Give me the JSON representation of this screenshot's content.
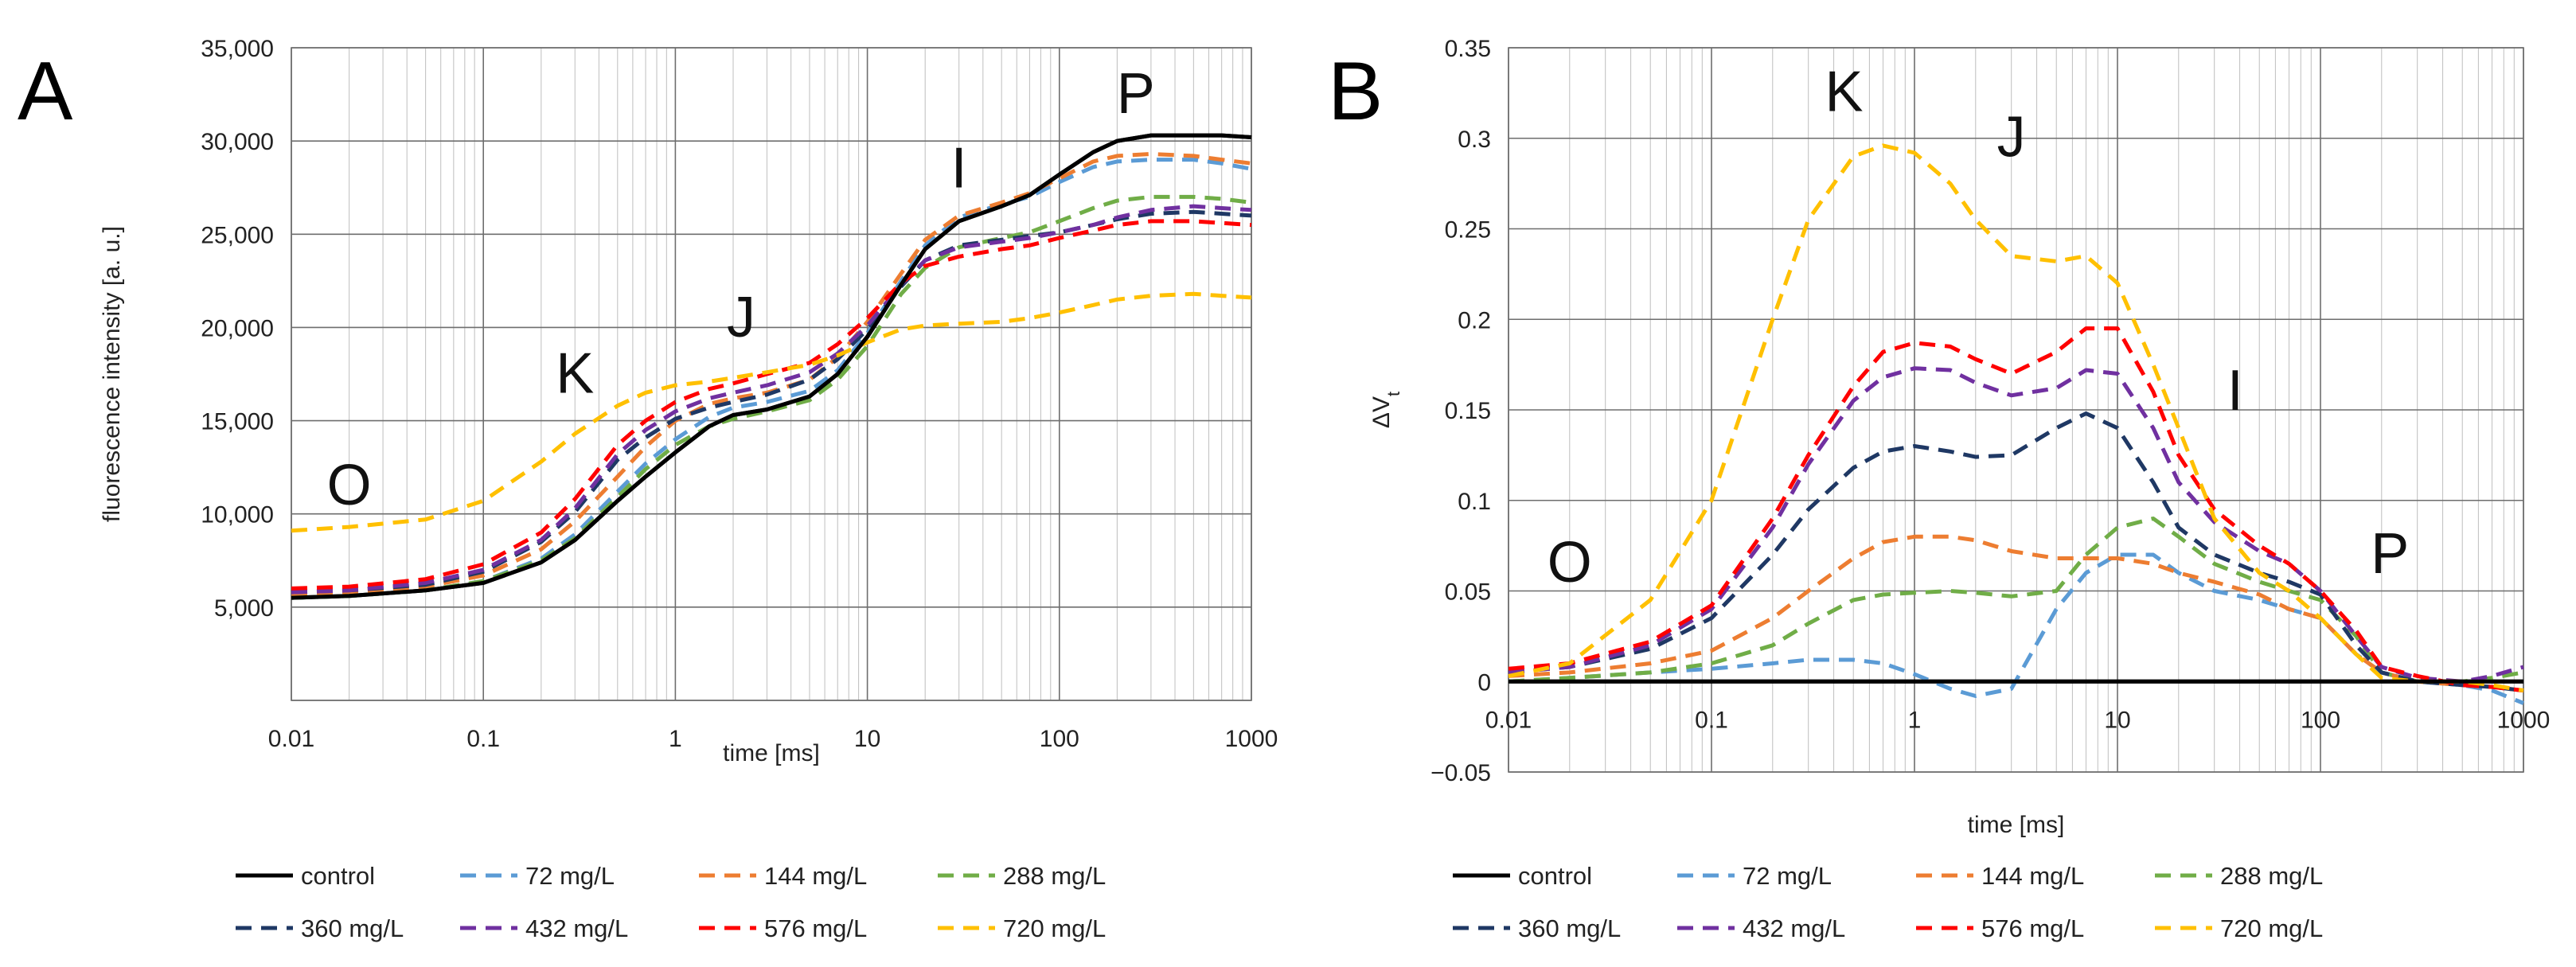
{
  "chart_data": [
    {
      "type": "line",
      "panel_label": "A",
      "title": "",
      "xlabel": "time [ms]",
      "ylabel": "fluorescence intensity [a. u.]",
      "x_scale": "log",
      "xlim": [
        0.01,
        1000
      ],
      "ylim": [
        0,
        35000
      ],
      "grid": true,
      "x_tick_labels": [
        "0.01",
        "0.1",
        "1",
        "10",
        "100",
        "1000"
      ],
      "y_tick_labels": [
        "",
        "5,000",
        "10,000",
        "15,000",
        "20,000",
        "25,000",
        "30,000",
        "35,000"
      ],
      "y_ticks": [
        0,
        5000,
        10000,
        15000,
        20000,
        25000,
        30000,
        35000
      ],
      "annotations": [
        {
          "text": "O",
          "x": 0.02,
          "y": 10500
        },
        {
          "text": "K",
          "x": 0.3,
          "y": 16500
        },
        {
          "text": "J",
          "x": 2.2,
          "y": 19500
        },
        {
          "text": "I",
          "x": 30,
          "y": 27500
        },
        {
          "text": "P",
          "x": 250,
          "y": 31500
        }
      ],
      "x": [
        0.01,
        0.02,
        0.05,
        0.1,
        0.2,
        0.3,
        0.5,
        0.7,
        1,
        1.5,
        2,
        3,
        5,
        7,
        10,
        15,
        20,
        30,
        50,
        70,
        100,
        150,
        200,
        300,
        500,
        700,
        1000
      ],
      "series": [
        {
          "name": "control",
          "color": "#000000",
          "dash": "solid",
          "values": [
            5500,
            5600,
            5900,
            6300,
            7400,
            8600,
            10700,
            12000,
            13300,
            14700,
            15300,
            15600,
            16300,
            17500,
            19500,
            22300,
            24200,
            25700,
            26500,
            27100,
            28200,
            29400,
            30000,
            30300,
            30300,
            30300,
            30200
          ]
        },
        {
          "name": "72 mg/L",
          "color": "#5b9bd5",
          "dash": "dashed",
          "values": [
            5500,
            5600,
            5900,
            6400,
            7600,
            8900,
            11200,
            12700,
            14000,
            15200,
            15700,
            16000,
            16600,
            17700,
            19700,
            22500,
            24400,
            25900,
            26600,
            27000,
            27800,
            28600,
            28900,
            29000,
            29000,
            28800,
            28500
          ]
        },
        {
          "name": "144 mg/L",
          "color": "#ed7d31",
          "dash": "dashed",
          "values": [
            5700,
            5800,
            6100,
            6700,
            8100,
            9600,
            12000,
            13600,
            15000,
            15900,
            16200,
            16500,
            17200,
            18400,
            20300,
            22900,
            24700,
            26000,
            26700,
            27200,
            28000,
            28900,
            29200,
            29300,
            29200,
            29000,
            28800
          ]
        },
        {
          "name": "288 mg/L",
          "color": "#70ad47",
          "dash": "dashed",
          "values": [
            5500,
            5600,
            5900,
            6400,
            7500,
            8700,
            10900,
            12400,
            13700,
            14700,
            15100,
            15500,
            16100,
            17200,
            19000,
            21800,
            23200,
            24300,
            24800,
            25100,
            25700,
            26400,
            26800,
            27000,
            27000,
            26900,
            26700
          ]
        },
        {
          "name": "360 mg/L",
          "color": "#1f3864",
          "dash": "dashed",
          "values": [
            5800,
            5900,
            6200,
            6900,
            8500,
            10100,
            12900,
            14100,
            15100,
            15700,
            16000,
            16400,
            17200,
            18300,
            19900,
            22200,
            23600,
            24400,
            24700,
            24900,
            25100,
            25500,
            25800,
            26100,
            26200,
            26100,
            26000
          ]
        },
        {
          "name": "432 mg/L",
          "color": "#7030a0",
          "dash": "dashed",
          "values": [
            5800,
            5900,
            6300,
            7000,
            8600,
            10300,
            13200,
            14500,
            15500,
            16200,
            16500,
            16900,
            17600,
            18600,
            20100,
            22300,
            23600,
            24300,
            24600,
            24800,
            25100,
            25500,
            25900,
            26300,
            26500,
            26400,
            26300
          ]
        },
        {
          "name": "576 mg/L",
          "color": "#ff0000",
          "dash": "dashed",
          "values": [
            6000,
            6100,
            6500,
            7300,
            9000,
            10800,
            13700,
            15000,
            16000,
            16700,
            17000,
            17500,
            18100,
            19100,
            20500,
            22400,
            23300,
            23800,
            24200,
            24400,
            24800,
            25200,
            25500,
            25700,
            25700,
            25600,
            25500
          ]
        },
        {
          "name": "720 mg/L",
          "color": "#ffc000",
          "dash": "dashed",
          "values": [
            9100,
            9300,
            9700,
            10700,
            12800,
            14300,
            15800,
            16500,
            16900,
            17100,
            17300,
            17600,
            18000,
            18500,
            19200,
            19900,
            20100,
            20200,
            20300,
            20500,
            20800,
            21200,
            21500,
            21700,
            21800,
            21700,
            21600
          ]
        }
      ]
    },
    {
      "type": "line",
      "panel_label": "B",
      "title": "",
      "xlabel": "time [ms]",
      "ylabel": "ΔV",
      "ylabel_sub": "t",
      "x_scale": "log",
      "xlim": [
        0.01,
        1000
      ],
      "ylim": [
        -0.05,
        0.35
      ],
      "grid": true,
      "x_tick_labels": [
        "0.01",
        "0.1",
        "1",
        "10",
        "100",
        "1000"
      ],
      "y_tick_labels": [
        "−0.05",
        "0",
        "0.05",
        "0.1",
        "0.15",
        "0.2",
        "0.25",
        "0.3",
        "0.35"
      ],
      "y_ticks": [
        -0.05,
        0,
        0.05,
        0.1,
        0.15,
        0.2,
        0.25,
        0.3,
        0.35
      ],
      "annotations": [
        {
          "text": "K",
          "x": 0.45,
          "y": 0.315
        },
        {
          "text": "J",
          "x": 3,
          "y": 0.29
        },
        {
          "text": "I",
          "x": 38,
          "y": 0.15
        },
        {
          "text": "O",
          "x": 0.02,
          "y": 0.055
        },
        {
          "text": "P",
          "x": 220,
          "y": 0.06
        }
      ],
      "x": [
        0.01,
        0.02,
        0.05,
        0.1,
        0.2,
        0.3,
        0.5,
        0.7,
        1,
        1.5,
        2,
        3,
        5,
        7,
        10,
        15,
        20,
        30,
        50,
        70,
        100,
        150,
        200,
        300,
        500,
        700,
        1000
      ],
      "series": [
        {
          "name": "control",
          "color": "#000000",
          "dash": "solid",
          "values": [
            0,
            0,
            0,
            0,
            0,
            0,
            0,
            0,
            0,
            0,
            0,
            0,
            0,
            0,
            0,
            0,
            0,
            0,
            0,
            0,
            0,
            0,
            0,
            0,
            0,
            0,
            0
          ]
        },
        {
          "name": "72 mg/L",
          "color": "#5b9bd5",
          "dash": "dashed",
          "values": [
            0,
            0.002,
            0.005,
            0.007,
            0.01,
            0.012,
            0.012,
            0.01,
            0.004,
            -0.004,
            -0.008,
            -0.004,
            0.04,
            0.06,
            0.07,
            0.07,
            0.06,
            0.05,
            0.045,
            0.04,
            0.035,
            0.015,
            0.005,
            0,
            -0.002,
            -0.005,
            -0.012
          ]
        },
        {
          "name": "144 mg/L",
          "color": "#ed7d31",
          "dash": "dashed",
          "values": [
            0.003,
            0.005,
            0.01,
            0.017,
            0.035,
            0.05,
            0.068,
            0.077,
            0.08,
            0.08,
            0.078,
            0.072,
            0.068,
            0.068,
            0.068,
            0.065,
            0.06,
            0.055,
            0.048,
            0.04,
            0.035,
            0.015,
            0.005,
            0,
            -0.002,
            -0.003,
            -0.005
          ]
        },
        {
          "name": "288 mg/L",
          "color": "#70ad47",
          "dash": "dashed",
          "values": [
            0,
            0.002,
            0.005,
            0.01,
            0.02,
            0.032,
            0.045,
            0.048,
            0.049,
            0.05,
            0.049,
            0.047,
            0.05,
            0.07,
            0.085,
            0.09,
            0.08,
            0.065,
            0.055,
            0.05,
            0.045,
            0.025,
            0.005,
            0,
            0,
            0.002,
            0.005
          ]
        },
        {
          "name": "360 mg/L",
          "color": "#1f3864",
          "dash": "dashed",
          "values": [
            0.005,
            0.008,
            0.018,
            0.035,
            0.07,
            0.095,
            0.118,
            0.127,
            0.13,
            0.127,
            0.124,
            0.125,
            0.14,
            0.148,
            0.14,
            0.11,
            0.085,
            0.07,
            0.06,
            0.055,
            0.048,
            0.02,
            0.005,
            0,
            -0.002,
            -0.003,
            -0.005
          ]
        },
        {
          "name": "432 mg/L",
          "color": "#7030a0",
          "dash": "dashed",
          "values": [
            0.005,
            0.008,
            0.02,
            0.04,
            0.085,
            0.12,
            0.155,
            0.168,
            0.173,
            0.172,
            0.165,
            0.158,
            0.162,
            0.172,
            0.17,
            0.14,
            0.11,
            0.088,
            0.072,
            0.065,
            0.05,
            0.025,
            0.008,
            0.002,
            0,
            0.003,
            0.008
          ]
        },
        {
          "name": "576 mg/L",
          "color": "#ff0000",
          "dash": "dashed",
          "values": [
            0.007,
            0.01,
            0.022,
            0.042,
            0.09,
            0.125,
            0.163,
            0.182,
            0.187,
            0.185,
            0.178,
            0.17,
            0.182,
            0.195,
            0.195,
            0.16,
            0.125,
            0.095,
            0.075,
            0.065,
            0.05,
            0.028,
            0.008,
            0.003,
            -0.002,
            -0.003,
            -0.005
          ]
        },
        {
          "name": "720 mg/L",
          "color": "#ffc000",
          "dash": "dashed",
          "values": [
            0.003,
            0.01,
            0.045,
            0.1,
            0.2,
            0.255,
            0.29,
            0.296,
            0.292,
            0.275,
            0.255,
            0.235,
            0.232,
            0.235,
            0.22,
            0.175,
            0.14,
            0.09,
            0.06,
            0.05,
            0.035,
            0.015,
            0.002,
            0,
            0,
            -0.002,
            -0.005
          ]
        }
      ]
    }
  ]
}
